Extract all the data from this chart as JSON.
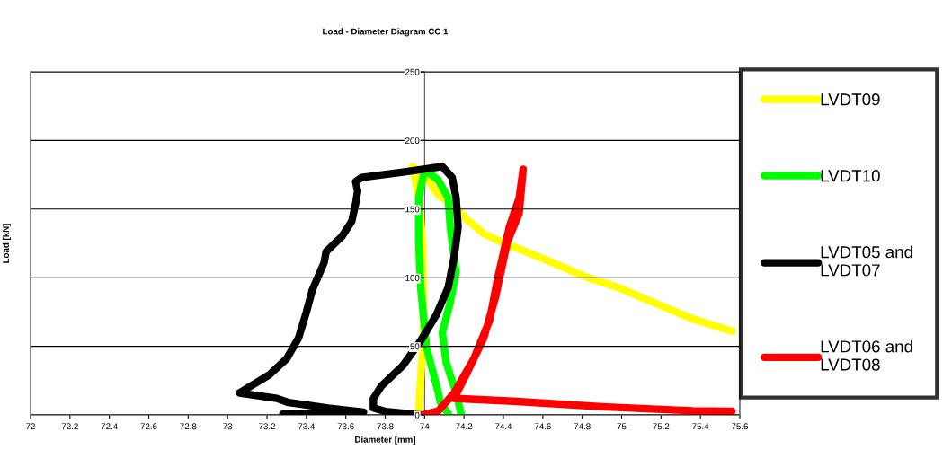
{
  "chart_data": {
    "type": "line",
    "title": "Load - Diameter Diagram CC 1",
    "xlabel": "Diameter [mm]",
    "ylabel": "Load [kN]",
    "xlim": [
      72,
      75.6
    ],
    "xticks": [
      72,
      72.2,
      72.4,
      72.6,
      72.8,
      73,
      73.2,
      73.4,
      73.6,
      73.8,
      74,
      74.2,
      74.4,
      74.6,
      74.8,
      75,
      75.2,
      75.4,
      75.6
    ],
    "ylim": [
      0,
      250
    ],
    "yticks": [
      0,
      50,
      100,
      150,
      200,
      250
    ],
    "grid": "y",
    "legend": "right",
    "marker": "none",
    "line_style": "solid",
    "series": [
      {
        "name": "LVDT09",
        "color": "#ffff00",
        "x": [
          73.97,
          73.995,
          73.99,
          73.97,
          73.94,
          74.01,
          74.07,
          74.12,
          74.21,
          74.3,
          74.39,
          74.6,
          74.81,
          74.98,
          75.16,
          75.36,
          75.56
        ],
        "values": [
          3,
          60,
          126,
          158,
          181,
          173,
          160,
          156,
          143,
          132,
          126,
          114,
          101,
          93,
          82,
          70,
          61
        ]
      },
      {
        "name": "LVDT10",
        "color": "#00ff00",
        "x": [
          74.185,
          74.16,
          74.11,
          74.09,
          74.13,
          74.16,
          74.13,
          74.12,
          74.07,
          74.0,
          73.97,
          73.97,
          73.98,
          74.01,
          74.07,
          74.08,
          74.12
        ],
        "values": [
          1,
          16,
          38,
          60,
          82,
          104,
          137,
          158,
          171,
          179,
          158,
          126,
          93,
          49,
          16,
          9,
          1
        ]
      },
      {
        "name": "LVDT05 and\nLVDT07",
        "color": "#000000",
        "x": [
          73.28,
          73.69,
          73.51,
          73.31,
          73.25,
          73.06,
          73.21,
          73.3,
          73.36,
          73.4,
          73.43,
          73.49,
          73.5,
          73.58,
          73.63,
          73.65,
          73.66,
          73.65,
          73.68,
          73.89,
          74.09,
          74.14,
          74.16,
          74.17,
          74.15,
          74.12,
          74.06,
          73.98,
          73.89,
          73.78,
          73.74,
          73.74,
          73.8,
          73.98
        ],
        "values": [
          0.5,
          2,
          5,
          9,
          12,
          16,
          29,
          41,
          56,
          75,
          91,
          111,
          119,
          130,
          141,
          154,
          163,
          170,
          173,
          177,
          181,
          173,
          158,
          137,
          115,
          93,
          73,
          54,
          36,
          21,
          12,
          5,
          2.6,
          0
        ]
      },
      {
        "name": "LVDT06 and\nLVDT08",
        "color": "#ff0000",
        "x": [
          73.99,
          74.07,
          74.15,
          74.25,
          74.33,
          74.37,
          74.43,
          74.48,
          74.5,
          74.48,
          74.42,
          74.36,
          74.3,
          74.21,
          74.15,
          74.45,
          74.9,
          75.36,
          75.56
        ],
        "values": [
          0,
          3,
          16,
          41,
          69,
          99,
          137,
          158,
          179,
          147,
          126,
          86,
          56,
          29,
          12,
          10,
          6,
          3,
          2.6
        ]
      }
    ]
  }
}
